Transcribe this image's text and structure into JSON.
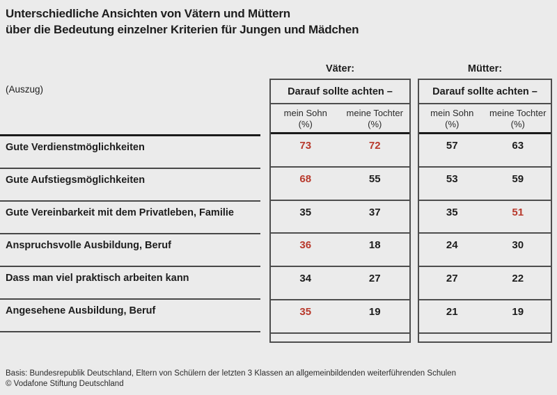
{
  "title": {
    "line1": "Unterschiedliche Ansichten von Vätern und Müttern",
    "line2": "über die Bedeutung einzelner Kriterien für Jungen und Mädchen"
  },
  "excerpt_label": "(Auszug)",
  "groups": [
    {
      "label": "Väter:",
      "header": "Darauf sollte achten –",
      "col1": "mein Sohn",
      "col2": "meine Tochter",
      "unit": "(%)"
    },
    {
      "label": "Mütter:",
      "header": "Darauf sollte achten –",
      "col1": "mein Sohn",
      "col2": "meine Tochter",
      "unit": "(%)"
    }
  ],
  "rows": [
    {
      "label": "Gute Verdienstmöglichkeiten",
      "cells": [
        {
          "v": "73",
          "red": true
        },
        {
          "v": "72",
          "red": true
        },
        {
          "v": "57",
          "red": false
        },
        {
          "v": "63",
          "red": false
        }
      ]
    },
    {
      "label": "Gute Aufstiegsmöglichkeiten",
      "cells": [
        {
          "v": "68",
          "red": true
        },
        {
          "v": "55",
          "red": false
        },
        {
          "v": "53",
          "red": false
        },
        {
          "v": "59",
          "red": false
        }
      ]
    },
    {
      "label": "Gute Vereinbarkeit mit dem Privatleben, Familie",
      "cells": [
        {
          "v": "35",
          "red": false
        },
        {
          "v": "37",
          "red": false
        },
        {
          "v": "35",
          "red": false
        },
        {
          "v": "51",
          "red": true
        }
      ]
    },
    {
      "label": "Anspruchsvolle Ausbildung, Beruf",
      "cells": [
        {
          "v": "36",
          "red": true
        },
        {
          "v": "18",
          "red": false
        },
        {
          "v": "24",
          "red": false
        },
        {
          "v": "30",
          "red": false
        }
      ]
    },
    {
      "label": "Dass man viel praktisch arbeiten kann",
      "cells": [
        {
          "v": "34",
          "red": false
        },
        {
          "v": "27",
          "red": false
        },
        {
          "v": "27",
          "red": false
        },
        {
          "v": "22",
          "red": false
        }
      ]
    },
    {
      "label": "Angesehene Ausbildung, Beruf",
      "cells": [
        {
          "v": "35",
          "red": true
        },
        {
          "v": "19",
          "red": false
        },
        {
          "v": "21",
          "red": false
        },
        {
          "v": "19",
          "red": false
        }
      ]
    }
  ],
  "footer": {
    "basis": "Basis: Bundesrepublik Deutschland, Eltern von Schülern der letzten 3 Klassen an allgemeinbildenden weiterführenden Schulen",
    "copyright": "© Vodafone Stiftung Deutschland"
  },
  "colors": {
    "background": "#ebebeb",
    "text": "#1d1d1d",
    "accent_red": "#b8392c",
    "border_gray": "#4d4d4d",
    "thick_rule": "#1a1a1a"
  },
  "chart_data": {
    "type": "table",
    "title": "Unterschiedliche Ansichten von Vätern und Müttern über die Bedeutung einzelner Kriterien für Jungen und Mädchen",
    "note": "(Auszug)",
    "column_groups": [
      "Väter: Darauf sollte achten –",
      "Mütter: Darauf sollte achten –"
    ],
    "columns": [
      "Väter – mein Sohn (%)",
      "Väter – meine Tochter (%)",
      "Mütter – mein Sohn (%)",
      "Mütter – meine Tochter (%)"
    ],
    "rows": [
      {
        "label": "Gute Verdienstmöglichkeiten",
        "values": [
          73,
          72,
          57,
          63
        ],
        "highlighted_red": [
          73,
          72
        ]
      },
      {
        "label": "Gute Aufstiegsmöglichkeiten",
        "values": [
          68,
          55,
          53,
          59
        ],
        "highlighted_red": [
          68
        ]
      },
      {
        "label": "Gute Vereinbarkeit mit dem Privatleben, Familie",
        "values": [
          35,
          37,
          35,
          51
        ],
        "highlighted_red": [
          51
        ]
      },
      {
        "label": "Anspruchsvolle Ausbildung, Beruf",
        "values": [
          36,
          18,
          24,
          30
        ],
        "highlighted_red": [
          36
        ]
      },
      {
        "label": "Dass man viel praktisch arbeiten kann",
        "values": [
          34,
          27,
          27,
          22
        ],
        "highlighted_red": []
      },
      {
        "label": "Angesehene Ausbildung, Beruf",
        "values": [
          35,
          19,
          21,
          19
        ],
        "highlighted_red": [
          35
        ]
      }
    ],
    "source_note": "Basis: Bundesrepublik Deutschland, Eltern von Schülern der letzten 3 Klassen an allgemeinbildenden weiterführenden Schulen",
    "copyright": "© Vodafone Stiftung Deutschland"
  }
}
